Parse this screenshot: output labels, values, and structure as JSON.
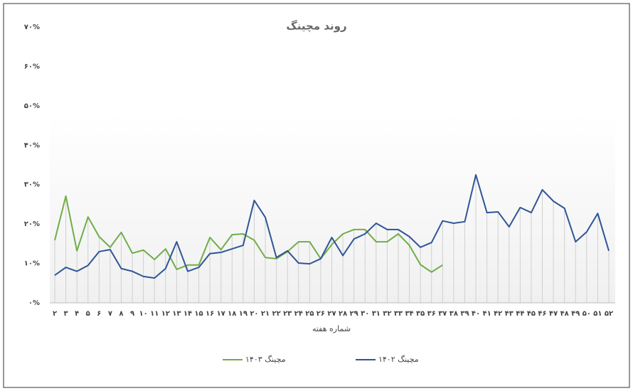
{
  "chart_data": {
    "type": "line",
    "title": "روند مچینگ",
    "x_label": "شماره هفته",
    "categories": [
      "۲",
      "۳",
      "۴",
      "۵",
      "۶",
      "۷",
      "۸",
      "۹",
      "۱۰",
      "۱۱",
      "۱۲",
      "۱۳",
      "۱۴",
      "۱۵",
      "۱۶",
      "۱۷",
      "۱۸",
      "۱۹",
      "۲۰",
      "۲۱",
      "۲۲",
      "۲۳",
      "۲۴",
      "۲۵",
      "۲۶",
      "۲۷",
      "۲۸",
      "۲۹",
      "۳۰",
      "۳۱",
      "۳۲",
      "۳۳",
      "۳۴",
      "۳۵",
      "۳۶",
      "۳۷",
      "۳۸",
      "۳۹",
      "۴۰",
      "۴۱",
      "۴۲",
      "۴۳",
      "۴۴",
      "۴۵",
      "۴۶",
      "۴۷",
      "۴۸",
      "۴۹",
      "۵۰",
      "۵۱",
      "۵۲"
    ],
    "series": [
      {
        "name": "مچینگ ۱۴۰۳",
        "color": "#70ad47",
        "values": [
          15.9,
          27.1,
          13.2,
          21.8,
          16.8,
          14.1,
          17.9,
          12.6,
          13.4,
          11,
          13.7,
          8.5,
          9.6,
          9.6,
          16.6,
          13.5,
          17.3,
          17.5,
          15.9,
          11.5,
          11.2,
          13,
          15.5,
          15.5,
          11.2,
          14.8,
          17.5,
          18.6,
          18.6,
          15.5,
          15.5,
          17.5,
          14.6,
          9.7,
          7.8,
          9.6,
          null,
          null,
          null,
          null,
          null,
          null,
          null,
          null,
          null,
          null,
          null,
          null,
          null,
          null,
          null
        ]
      },
      {
        "name": "مچینگ ۱۴۰۲",
        "color": "#2f5597",
        "values": [
          7,
          9,
          8,
          9.5,
          13,
          13.5,
          8.7,
          8,
          6.7,
          6.3,
          8.7,
          15.5,
          8,
          9,
          12.5,
          12.8,
          13.7,
          14.6,
          26,
          21.7,
          11.5,
          13.2,
          10.1,
          9.9,
          11.2,
          16.6,
          12,
          16.2,
          17.5,
          20.2,
          18.6,
          18.6,
          16.8,
          14.1,
          15.3,
          20.8,
          20.2,
          20.6,
          32.5,
          22.9,
          23.1,
          19.3,
          24.2,
          22.9,
          28.7,
          25.8,
          24,
          15.5,
          18,
          22.7,
          13.2
        ]
      }
    ],
    "ylim": [
      0,
      70
    ],
    "yticks": [
      {
        "value": 0,
        "label": "۰%"
      },
      {
        "value": 10,
        "label": "۱۰%"
      },
      {
        "value": 20,
        "label": "۲۰%"
      },
      {
        "value": 30,
        "label": "۳۰%"
      },
      {
        "value": 40,
        "label": "۴۰%"
      },
      {
        "value": 50,
        "label": "۵۰%"
      },
      {
        "value": 60,
        "label": "۶۰%"
      },
      {
        "value": 70,
        "label": "۷۰%"
      }
    ],
    "legend": "bottom"
  }
}
